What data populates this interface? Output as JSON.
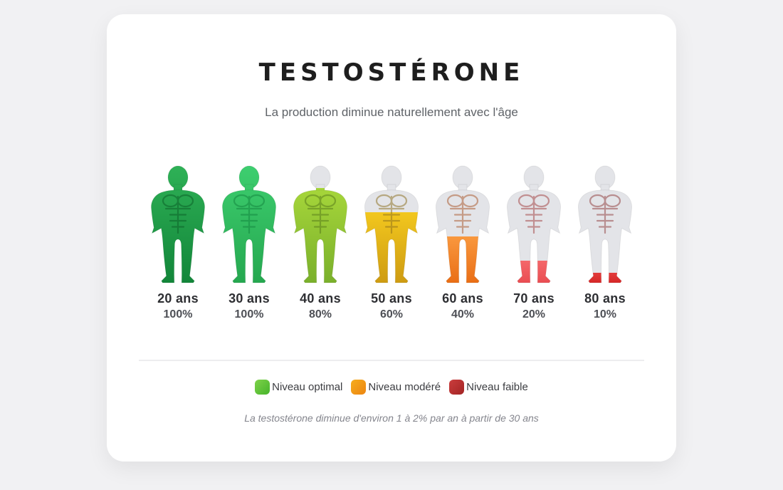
{
  "header": {
    "title": "TESTOSTÉRONE",
    "subtitle": "La production diminue naturellement avec l'âge"
  },
  "chart_data": {
    "type": "pictogram",
    "title": "TESTOSTÉRONE",
    "subtitle": "La production diminue naturellement avec l'âge",
    "categories": [
      "20 ans",
      "30 ans",
      "40 ans",
      "50 ans",
      "60 ans",
      "70 ans",
      "80 ans"
    ],
    "values": [
      100,
      100,
      80,
      60,
      40,
      20,
      10
    ],
    "unit": "%",
    "empty_color": "#e3e4e8",
    "figures": [
      {
        "age_label": "20 ans",
        "percent_label": "100%",
        "value": 100,
        "color_top": "#2fb257",
        "color_bottom": "#128539",
        "line_color": "#0b5d26"
      },
      {
        "age_label": "30 ans",
        "percent_label": "100%",
        "value": 100,
        "color_top": "#3ecf70",
        "color_bottom": "#25a74f",
        "line_color": "#12843d"
      },
      {
        "age_label": "40 ans",
        "percent_label": "80%",
        "value": 80,
        "color_top": "#a6d63a",
        "color_bottom": "#79af2b",
        "line_color": "#55781a"
      },
      {
        "age_label": "50 ans",
        "percent_label": "60%",
        "value": 60,
        "color_top": "#f2c71e",
        "color_bottom": "#cd9a12",
        "line_color": "#8a6d1d"
      },
      {
        "age_label": "60 ans",
        "percent_label": "40%",
        "value": 40,
        "color_top": "#f9983e",
        "color_bottom": "#e96c13",
        "line_color": "#a85526"
      },
      {
        "age_label": "70 ans",
        "percent_label": "20%",
        "value": 20,
        "color_top": "#f4676a",
        "color_bottom": "#e94b50",
        "line_color": "#a03c3c"
      },
      {
        "age_label": "80 ans",
        "percent_label": "10%",
        "value": 10,
        "color_top": "#e23b3b",
        "color_bottom": "#d32424",
        "line_color": "#8f3a3a"
      }
    ]
  },
  "legend": {
    "items": [
      {
        "label": "Niveau optimal",
        "color_top": "#7ed24a",
        "color_bottom": "#46b42a"
      },
      {
        "label": "Niveau modéré",
        "color_top": "#f6ad1d",
        "color_bottom": "#ec8511"
      },
      {
        "label": "Niveau faible",
        "color_top": "#cb3d3d",
        "color_bottom": "#a22424"
      }
    ]
  },
  "footer": {
    "note": "La testostérone diminue d'environ 1 à 2% par an à partir de 30 ans"
  }
}
